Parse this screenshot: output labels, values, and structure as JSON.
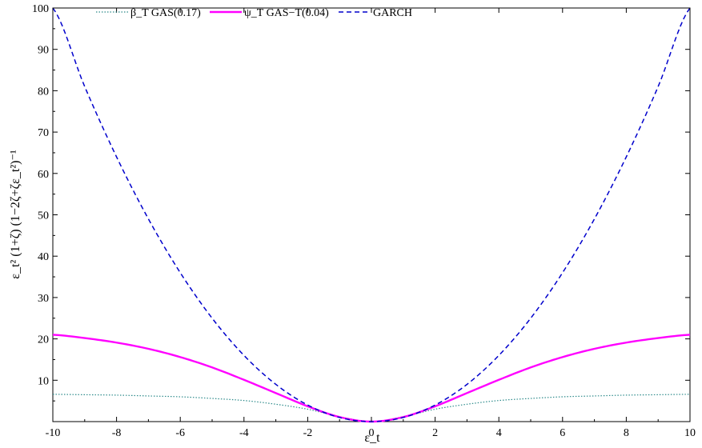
{
  "chart_data": {
    "type": "line",
    "title": "",
    "xlabel": "ε_t",
    "ylabel": "ε_t² (1+ζ) (1−2ζ+ζε_t²)⁻¹",
    "xlim": [
      -10,
      10
    ],
    "ylim": [
      0,
      100
    ],
    "x_ticks": [
      "-10",
      "-8",
      "-6",
      "-4",
      "-2",
      "0",
      "2",
      "4",
      "6",
      "8",
      "10"
    ],
    "y_ticks": [
      "10",
      "20",
      "30",
      "40",
      "50",
      "60",
      "70",
      "80",
      "90",
      "100"
    ],
    "grid": false,
    "legend_position": "top",
    "x": [
      -10,
      -9,
      -8,
      -7,
      -6,
      -5,
      -4,
      -3,
      -2,
      -1,
      0,
      1,
      2,
      3,
      4,
      5,
      6,
      7,
      8,
      9,
      10
    ],
    "series": [
      {
        "name": "β_T GAS(0.17)",
        "color": "#2e8b8b",
        "style": "dotted",
        "values": [
          6.6,
          6.5,
          6.4,
          6.2,
          6.0,
          5.6,
          5.1,
          4.2,
          3.0,
          1.2,
          0,
          1.2,
          3.0,
          4.2,
          5.1,
          5.6,
          6.0,
          6.2,
          6.4,
          6.5,
          6.6
        ]
      },
      {
        "name": "ψ_T GAS−T(0.04)",
        "color": "#ff00ff",
        "style": "solid",
        "values": [
          21.0,
          20.2,
          19.1,
          17.6,
          15.6,
          13.1,
          10.1,
          6.9,
          3.7,
          1.1,
          0,
          1.1,
          3.7,
          6.9,
          10.1,
          13.1,
          15.6,
          17.6,
          19.1,
          20.2,
          21.0
        ]
      },
      {
        "name": "GARCH",
        "color": "#0000cc",
        "style": "dashed",
        "values": [
          100,
          81,
          64,
          49,
          36,
          25,
          16,
          9,
          4,
          1,
          0,
          1,
          4,
          9,
          16,
          25,
          36,
          49,
          64,
          81,
          100
        ]
      }
    ]
  }
}
